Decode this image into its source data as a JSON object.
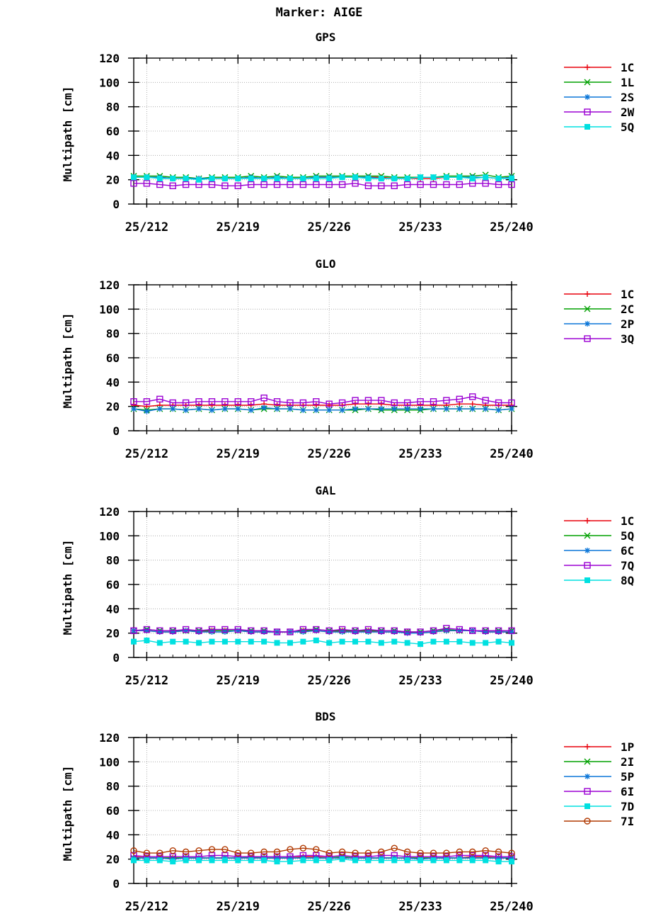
{
  "page_title": "Marker: AIGE",
  "x_ticks": [
    "25/212",
    "25/219",
    "25/226",
    "25/233",
    "25/240"
  ],
  "y_ticks": [
    "0",
    "20",
    "40",
    "60",
    "80",
    "100",
    "120"
  ],
  "chart_data": [
    {
      "type": "line",
      "title": "GPS",
      "ylabel": "Multipath [cm]",
      "xlabel": "",
      "xlim": [
        211,
        240
      ],
      "ylim": [
        0,
        120
      ],
      "grid": true,
      "legend": "right",
      "x": [
        211,
        212,
        213,
        214,
        215,
        216,
        217,
        218,
        219,
        220,
        221,
        222,
        223,
        224,
        225,
        226,
        227,
        228,
        229,
        230,
        231,
        232,
        233,
        234,
        235,
        236,
        237,
        238,
        239,
        240
      ],
      "series": [
        {
          "name": "1C",
          "color": "#e8000b",
          "marker": "plus",
          "values": [
            22,
            22,
            22,
            21,
            21,
            21,
            21,
            21,
            21,
            22,
            21,
            22,
            21,
            21,
            22,
            22,
            22,
            22,
            22,
            22,
            21,
            21,
            21,
            21,
            22,
            22,
            22,
            22,
            21,
            22
          ]
        },
        {
          "name": "1L",
          "color": "#00a000",
          "marker": "x",
          "values": [
            23,
            23,
            23,
            22,
            22,
            21,
            22,
            22,
            22,
            23,
            22,
            23,
            22,
            22,
            23,
            23,
            23,
            23,
            23,
            23,
            22,
            22,
            22,
            22,
            23,
            23,
            23,
            24,
            22,
            23
          ]
        },
        {
          "name": "2S",
          "color": "#0b76d8",
          "marker": "star",
          "values": [
            22,
            22,
            22,
            21,
            21,
            21,
            21,
            21,
            21,
            22,
            21,
            22,
            21,
            21,
            22,
            22,
            22,
            22,
            22,
            21,
            21,
            21,
            22,
            22,
            22,
            22,
            22,
            22,
            21,
            22
          ]
        },
        {
          "name": "2W",
          "color": "#9b00d3",
          "marker": "open-square",
          "values": [
            17,
            17,
            16,
            15,
            16,
            16,
            16,
            15,
            15,
            16,
            16,
            16,
            16,
            16,
            16,
            16,
            16,
            17,
            15,
            15,
            15,
            16,
            16,
            16,
            16,
            16,
            17,
            17,
            16,
            16
          ]
        },
        {
          "name": "5Q",
          "color": "#00e0e0",
          "marker": "filled-square",
          "values": [
            22,
            22,
            21,
            21,
            21,
            20,
            21,
            21,
            21,
            21,
            21,
            21,
            21,
            21,
            21,
            21,
            22,
            22,
            21,
            21,
            21,
            21,
            22,
            22,
            22,
            22,
            21,
            22,
            21,
            21
          ]
        }
      ]
    },
    {
      "type": "line",
      "title": "GLO",
      "ylabel": "Multipath [cm]",
      "xlabel": "",
      "xlim": [
        211,
        240
      ],
      "ylim": [
        0,
        120
      ],
      "grid": true,
      "legend": "right",
      "x": [
        211,
        212,
        213,
        214,
        215,
        216,
        217,
        218,
        219,
        220,
        221,
        222,
        223,
        224,
        225,
        226,
        227,
        228,
        229,
        230,
        231,
        232,
        233,
        234,
        235,
        236,
        237,
        238,
        239,
        240
      ],
      "series": [
        {
          "name": "1C",
          "color": "#e8000b",
          "marker": "plus",
          "values": [
            21,
            20,
            21,
            21,
            21,
            21,
            21,
            21,
            21,
            21,
            22,
            21,
            21,
            21,
            21,
            21,
            21,
            22,
            22,
            22,
            21,
            21,
            21,
            21,
            21,
            22,
            22,
            21,
            21,
            21
          ]
        },
        {
          "name": "2C",
          "color": "#00a000",
          "marker": "x",
          "values": [
            18,
            17,
            18,
            18,
            17,
            18,
            17,
            18,
            18,
            17,
            18,
            18,
            18,
            17,
            17,
            17,
            17,
            17,
            18,
            17,
            17,
            17,
            17,
            18,
            18,
            18,
            18,
            18,
            17,
            18
          ]
        },
        {
          "name": "2P",
          "color": "#0b76d8",
          "marker": "star",
          "values": [
            18,
            16,
            18,
            18,
            17,
            18,
            17,
            18,
            18,
            17,
            19,
            18,
            18,
            17,
            17,
            17,
            17,
            18,
            18,
            18,
            18,
            18,
            18,
            18,
            18,
            18,
            18,
            18,
            17,
            18
          ]
        },
        {
          "name": "3Q",
          "color": "#9b00d3",
          "marker": "open-square",
          "values": [
            24,
            24,
            26,
            23,
            23,
            24,
            24,
            24,
            24,
            24,
            27,
            24,
            23,
            23,
            24,
            22,
            23,
            25,
            25,
            25,
            23,
            23,
            24,
            24,
            25,
            26,
            28,
            25,
            23,
            23
          ]
        }
      ]
    },
    {
      "type": "line",
      "title": "GAL",
      "ylabel": "Multipath [cm]",
      "xlabel": "",
      "xlim": [
        211,
        240
      ],
      "ylim": [
        0,
        120
      ],
      "grid": true,
      "legend": "right",
      "x": [
        211,
        212,
        213,
        214,
        215,
        216,
        217,
        218,
        219,
        220,
        221,
        222,
        223,
        224,
        225,
        226,
        227,
        228,
        229,
        230,
        231,
        232,
        233,
        234,
        235,
        236,
        237,
        238,
        239,
        240
      ],
      "series": [
        {
          "name": "1C",
          "color": "#e8000b",
          "marker": "plus",
          "values": [
            22,
            22,
            21,
            21,
            22,
            21,
            22,
            22,
            22,
            21,
            21,
            21,
            21,
            22,
            22,
            21,
            22,
            21,
            22,
            21,
            21,
            21,
            20,
            21,
            22,
            22,
            22,
            21,
            21,
            21
          ]
        },
        {
          "name": "5Q",
          "color": "#00a000",
          "marker": "x",
          "values": [
            22,
            23,
            22,
            22,
            22,
            22,
            22,
            22,
            22,
            22,
            22,
            21,
            21,
            22,
            23,
            22,
            22,
            22,
            22,
            22,
            22,
            21,
            21,
            22,
            23,
            22,
            22,
            22,
            22,
            22
          ]
        },
        {
          "name": "6C",
          "color": "#0b76d8",
          "marker": "star",
          "values": [
            22,
            22,
            21,
            21,
            22,
            21,
            21,
            21,
            22,
            21,
            21,
            21,
            21,
            21,
            22,
            21,
            21,
            21,
            21,
            21,
            21,
            20,
            20,
            21,
            22,
            22,
            22,
            21,
            21,
            21
          ]
        },
        {
          "name": "7Q",
          "color": "#9b00d3",
          "marker": "open-square",
          "values": [
            22,
            23,
            22,
            22,
            23,
            22,
            23,
            23,
            23,
            22,
            22,
            21,
            21,
            23,
            23,
            22,
            23,
            22,
            23,
            22,
            22,
            21,
            21,
            22,
            24,
            23,
            22,
            22,
            22,
            22
          ]
        },
        {
          "name": "8Q",
          "color": "#00e0e0",
          "marker": "filled-square",
          "values": [
            13,
            14,
            12,
            13,
            13,
            12,
            13,
            13,
            13,
            13,
            13,
            12,
            12,
            13,
            14,
            12,
            13,
            13,
            13,
            12,
            13,
            12,
            11,
            13,
            13,
            13,
            12,
            12,
            13,
            12
          ]
        }
      ]
    },
    {
      "type": "line",
      "title": "BDS",
      "ylabel": "Multipath [cm]",
      "xlabel": "",
      "xlim": [
        211,
        240
      ],
      "ylim": [
        0,
        120
      ],
      "grid": true,
      "legend": "right",
      "x": [
        211,
        212,
        213,
        214,
        215,
        216,
        217,
        218,
        219,
        220,
        221,
        222,
        223,
        224,
        225,
        226,
        227,
        228,
        229,
        230,
        231,
        232,
        233,
        234,
        235,
        236,
        237,
        238,
        239,
        240
      ],
      "series": [
        {
          "name": "1P",
          "color": "#e8000b",
          "marker": "plus",
          "values": [
            22,
            21,
            21,
            21,
            21,
            21,
            21,
            21,
            21,
            21,
            21,
            21,
            21,
            22,
            22,
            21,
            21,
            21,
            21,
            21,
            21,
            21,
            21,
            21,
            21,
            21,
            22,
            22,
            21,
            21
          ]
        },
        {
          "name": "2I",
          "color": "#00a000",
          "marker": "x",
          "values": [
            21,
            21,
            21,
            21,
            21,
            21,
            21,
            21,
            21,
            22,
            21,
            21,
            21,
            21,
            21,
            21,
            22,
            21,
            21,
            21,
            21,
            21,
            21,
            21,
            21,
            21,
            21,
            21,
            21,
            21
          ]
        },
        {
          "name": "5P",
          "color": "#0b76d8",
          "marker": "star",
          "values": [
            21,
            21,
            21,
            20,
            21,
            21,
            21,
            21,
            21,
            21,
            21,
            21,
            21,
            21,
            21,
            21,
            21,
            21,
            21,
            21,
            21,
            21,
            20,
            21,
            21,
            21,
            21,
            21,
            21,
            21
          ]
        },
        {
          "name": "6I",
          "color": "#9b00d3",
          "marker": "open-square",
          "values": [
            23,
            22,
            22,
            22,
            22,
            22,
            23,
            23,
            22,
            22,
            22,
            22,
            22,
            23,
            23,
            22,
            23,
            22,
            22,
            23,
            23,
            22,
            22,
            22,
            22,
            23,
            23,
            23,
            22,
            22
          ]
        },
        {
          "name": "7D",
          "color": "#00e0e0",
          "marker": "filled-square",
          "values": [
            19,
            19,
            19,
            18,
            19,
            19,
            19,
            19,
            19,
            19,
            19,
            18,
            18,
            19,
            19,
            19,
            20,
            19,
            19,
            19,
            19,
            19,
            19,
            19,
            19,
            19,
            19,
            19,
            18,
            18
          ]
        },
        {
          "name": "7I",
          "color": "#b03800",
          "marker": "open-circle",
          "values": [
            27,
            25,
            25,
            27,
            26,
            27,
            28,
            28,
            25,
            25,
            26,
            26,
            28,
            29,
            28,
            25,
            26,
            25,
            25,
            26,
            29,
            26,
            25,
            25,
            25,
            26,
            26,
            27,
            26,
            25
          ]
        }
      ]
    }
  ]
}
